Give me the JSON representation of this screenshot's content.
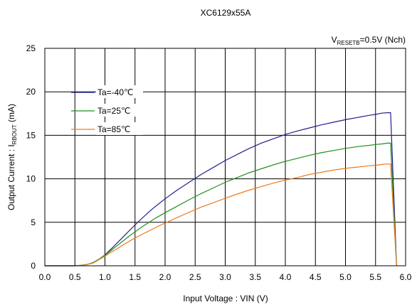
{
  "chart_data": {
    "type": "line",
    "title": "XC6129x55A",
    "condition": {
      "prefix": "V",
      "subscript": "RESETB",
      "suffix": "=0.5V (Nch)"
    },
    "xlabel": "Input Voltage : VIN (V)",
    "ylabel": {
      "prefix": "Output Current : I",
      "subscript": "RBOUT",
      "suffix": " (mA)"
    },
    "xlim": [
      0,
      6
    ],
    "ylim": [
      0,
      25
    ],
    "grid": true,
    "legend_position": "top-left",
    "x_ticks": [
      "0.0",
      "0.5",
      "1.0",
      "1.5",
      "2.0",
      "2.5",
      "3.0",
      "3.5",
      "4.0",
      "4.5",
      "5.0",
      "5.5",
      "6.0"
    ],
    "y_ticks": [
      "0",
      "5",
      "10",
      "15",
      "20",
      "25"
    ],
    "series": [
      {
        "name": "Ta=-40℃",
        "color": "#1f1f8f",
        "x": [
          0,
          0.5,
          0.6,
          0.7,
          0.8,
          0.9,
          1.0,
          1.1,
          1.2,
          1.3,
          1.4,
          1.5,
          1.6,
          1.7,
          1.8,
          1.9,
          2.0,
          2.2,
          2.4,
          2.6,
          2.8,
          3.0,
          3.2,
          3.4,
          3.6,
          3.8,
          4.0,
          4.2,
          4.4,
          4.6,
          4.8,
          5.0,
          5.2,
          5.4,
          5.5,
          5.6,
          5.7,
          5.75,
          5.85
        ],
        "y": [
          0,
          0,
          0.05,
          0.15,
          0.35,
          0.75,
          1.25,
          1.9,
          2.6,
          3.3,
          4.0,
          4.7,
          5.35,
          6.0,
          6.6,
          7.15,
          7.7,
          8.7,
          9.6,
          10.5,
          11.3,
          12.1,
          12.8,
          13.5,
          14.1,
          14.6,
          15.1,
          15.5,
          15.85,
          16.2,
          16.5,
          16.8,
          17.05,
          17.3,
          17.4,
          17.55,
          17.6,
          17.6,
          0
        ]
      },
      {
        "name": "Ta=25℃",
        "color": "#1f8f1f",
        "x": [
          0,
          0.5,
          0.6,
          0.7,
          0.8,
          0.9,
          1.0,
          1.1,
          1.2,
          1.3,
          1.4,
          1.5,
          1.6,
          1.7,
          1.8,
          1.9,
          2.0,
          2.2,
          2.4,
          2.6,
          2.8,
          3.0,
          3.2,
          3.4,
          3.6,
          3.8,
          4.0,
          4.2,
          4.4,
          4.6,
          4.8,
          5.0,
          5.2,
          5.4,
          5.5,
          5.6,
          5.7,
          5.75,
          5.85
        ],
        "y": [
          0,
          0,
          0.05,
          0.15,
          0.35,
          0.75,
          1.2,
          1.75,
          2.3,
          2.85,
          3.4,
          3.9,
          4.4,
          4.85,
          5.3,
          5.7,
          6.1,
          6.85,
          7.6,
          8.3,
          8.95,
          9.6,
          10.15,
          10.7,
          11.15,
          11.6,
          12.0,
          12.35,
          12.7,
          13.0,
          13.25,
          13.5,
          13.7,
          13.85,
          13.95,
          14.0,
          14.1,
          14.1,
          0
        ]
      },
      {
        "name": "Ta=85℃",
        "color": "#f07a1a",
        "x": [
          0,
          0.5,
          0.6,
          0.7,
          0.8,
          0.9,
          1.0,
          1.1,
          1.2,
          1.3,
          1.4,
          1.5,
          1.6,
          1.7,
          1.8,
          1.9,
          2.0,
          2.2,
          2.4,
          2.6,
          2.8,
          3.0,
          3.2,
          3.4,
          3.6,
          3.8,
          4.0,
          4.2,
          4.4,
          4.6,
          4.8,
          5.0,
          5.2,
          5.4,
          5.5,
          5.6,
          5.7,
          5.75,
          5.85
        ],
        "y": [
          0,
          0,
          0.05,
          0.15,
          0.3,
          0.7,
          1.1,
          1.55,
          1.95,
          2.4,
          2.8,
          3.2,
          3.55,
          3.9,
          4.25,
          4.6,
          4.9,
          5.55,
          6.15,
          6.75,
          7.25,
          7.75,
          8.25,
          8.7,
          9.1,
          9.5,
          9.85,
          10.15,
          10.5,
          10.75,
          11.0,
          11.2,
          11.35,
          11.5,
          11.55,
          11.65,
          11.7,
          11.7,
          0
        ]
      }
    ]
  }
}
